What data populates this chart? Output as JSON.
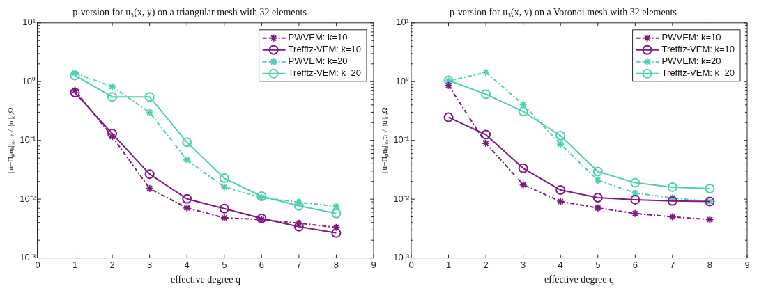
{
  "chart_data": [
    {
      "type": "line",
      "title": "p-version for u₃(x, y) on a triangular mesh with 32 elements",
      "xlabel": "effective degree q",
      "ylabel": "||u−Πₚuₕ||₀,τₕ / ||u||₀,Ω",
      "x": [
        1,
        2,
        3,
        4,
        5,
        6,
        7,
        8
      ],
      "xlim": [
        0,
        9
      ],
      "xticks": [
        0,
        1,
        2,
        3,
        4,
        5,
        6,
        7,
        8,
        9
      ],
      "ylim": [
        0.001,
        10
      ],
      "yticks": [
        {
          "value": 0.001,
          "label": "10⁻³"
        },
        {
          "value": 0.01,
          "label": "10⁻²"
        },
        {
          "value": 0.1,
          "label": "10⁻¹"
        },
        {
          "value": 1,
          "label": "10⁰"
        },
        {
          "value": 10,
          "label": "10¹"
        }
      ],
      "log": "y",
      "legend": "top right",
      "series": [
        {
          "name": "PWVEM: k=10",
          "color": "#7e1a82",
          "marker": "cross",
          "line_style": "dashed",
          "values": [
            0.71,
            0.116,
            0.0152,
            0.0071,
            0.0048,
            0.0045,
            0.0039,
            0.0033
          ]
        },
        {
          "name": "Trefftz-VEM: k=10",
          "color": "#7e1a82",
          "marker": "circle",
          "line_style": "solid",
          "values": [
            0.65,
            0.13,
            0.0267,
            0.0101,
            0.0069,
            0.0047,
            0.0034,
            0.00265
          ]
        },
        {
          "name": "PWVEM: k=20",
          "color": "#4ecfb4",
          "marker": "cross",
          "line_style": "dashed",
          "values": [
            1.4,
            0.82,
            0.3,
            0.0466,
            0.0161,
            0.0106,
            0.0089,
            0.0075
          ]
        },
        {
          "name": "Trefftz-VEM: k=20",
          "color": "#4ecfb4",
          "marker": "circle",
          "line_style": "solid",
          "values": [
            1.27,
            0.55,
            0.55,
            0.093,
            0.0227,
            0.0112,
            0.0077,
            0.0057
          ]
        }
      ]
    },
    {
      "type": "line",
      "title": "p-version for u₃(x, y) on a Voronoi mesh with 32 elements",
      "xlabel": "effective degree q",
      "ylabel": "||u−Πₚuₕ||₀,τₕ / ||u||₀,Ω",
      "x": [
        1,
        2,
        3,
        4,
        5,
        6,
        7,
        8
      ],
      "xlim": [
        0,
        9
      ],
      "xticks": [
        0,
        1,
        2,
        3,
        4,
        5,
        6,
        7,
        8,
        9
      ],
      "ylim": [
        0.001,
        10
      ],
      "yticks": [
        {
          "value": 0.001,
          "label": "10⁻³"
        },
        {
          "value": 0.01,
          "label": "10⁻²"
        },
        {
          "value": 0.1,
          "label": "10⁻¹"
        },
        {
          "value": 1,
          "label": "10⁰"
        },
        {
          "value": 10,
          "label": "10¹"
        }
      ],
      "log": "y",
      "legend": "top right",
      "series": [
        {
          "name": "PWVEM: k=10",
          "color": "#7e1a82",
          "marker": "cross",
          "line_style": "dashed",
          "values": [
            0.86,
            0.089,
            0.0176,
            0.0091,
            0.0071,
            0.0057,
            0.005,
            0.0045
          ]
        },
        {
          "name": "Trefftz-VEM: k=10",
          "color": "#7e1a82",
          "marker": "circle",
          "line_style": "solid",
          "values": [
            0.247,
            0.125,
            0.0335,
            0.0143,
            0.0106,
            0.0098,
            0.0093,
            0.0091
          ]
        },
        {
          "name": "PWVEM: k=20",
          "color": "#4ecfb4",
          "marker": "cross",
          "line_style": "dashed",
          "values": [
            1.02,
            1.44,
            0.41,
            0.086,
            0.021,
            0.0127,
            0.0105,
            0.0091
          ]
        },
        {
          "name": "Trefftz-VEM: k=20",
          "color": "#4ecfb4",
          "marker": "circle",
          "line_style": "solid",
          "values": [
            1.05,
            0.61,
            0.31,
            0.12,
            0.0295,
            0.019,
            0.016,
            0.0151
          ]
        }
      ]
    }
  ]
}
